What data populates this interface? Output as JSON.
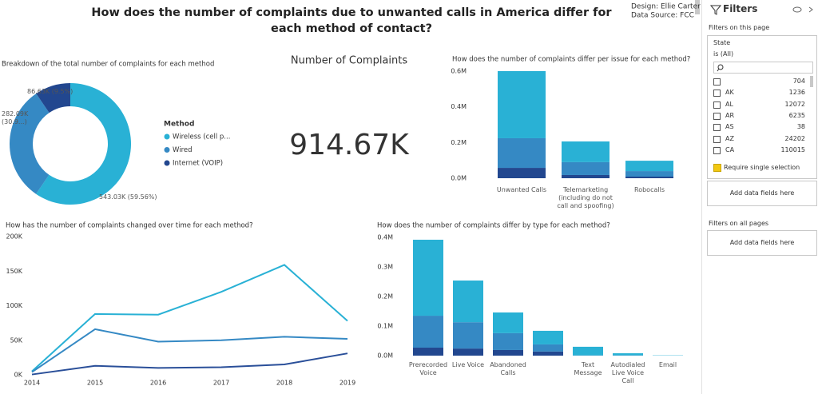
{
  "header": {
    "title": "How does the number of complaints due to unwanted calls in America differ for each method of contact?",
    "credits": [
      "Design: Ellie Carter",
      "Data Source: FCC"
    ]
  },
  "card": {
    "title": "Number of Complaints",
    "value": "914.67K"
  },
  "chart_data": [
    {
      "type": "pie",
      "donut": true,
      "title": "Breakdown of the total number of complaints for each method",
      "legend_title": "Method",
      "categories": [
        "Wireless (cell p...",
        "Wired",
        "Internet (VOIP)"
      ],
      "values": [
        543030,
        282090,
        86630
      ],
      "value_labels": [
        "543.03K (59.56%)",
        "282.09K (30.9...)",
        "86.63K (9.5%)"
      ],
      "colors": [
        "#29b1d5",
        "#3589c4",
        "#22478f"
      ]
    },
    {
      "type": "bar",
      "stacked": true,
      "title": "How does the number of complaints differ per issue for each method?",
      "categories": [
        "Unwanted Calls",
        "Telemarketing (including do not call and spoofing)",
        "Robocalls"
      ],
      "series": [
        {
          "color": "#29b1d5",
          "values": [
            376000,
            116000,
            58000
          ]
        },
        {
          "color": "#3589c4",
          "values": [
            166000,
            72000,
            31000
          ]
        },
        {
          "color": "#22478f",
          "values": [
            58000,
            18000,
            9000
          ]
        }
      ],
      "ylim": [
        0,
        600000
      ],
      "yticks": [
        {
          "value": 0,
          "label": "0.0M"
        },
        {
          "value": 200000,
          "label": "0.2M"
        },
        {
          "value": 400000,
          "label": "0.4M"
        },
        {
          "value": 600000,
          "label": "0.6M"
        }
      ]
    },
    {
      "type": "line",
      "title": "How has the number of complaints changed over time for each method?",
      "x": [
        2014,
        2015,
        2016,
        2017,
        2018,
        2019
      ],
      "series": [
        {
          "color": "#29b1d5",
          "values": [
            5000,
            88000,
            87000,
            120000,
            159000,
            78000
          ]
        },
        {
          "color": "#3589c4",
          "values": [
            4000,
            66000,
            48000,
            50000,
            55000,
            52000
          ]
        },
        {
          "color": "#2a4f99",
          "values": [
            500,
            13000,
            10000,
            11000,
            15000,
            31000
          ]
        }
      ],
      "xlim": [
        2014,
        2019
      ],
      "xticks": [
        2014,
        2015,
        2016,
        2017,
        2018,
        2019
      ],
      "ylim": [
        0,
        200000
      ],
      "yticks": [
        {
          "value": 0,
          "label": "0K"
        },
        {
          "value": 50000,
          "label": "50K"
        },
        {
          "value": 100000,
          "label": "100K"
        },
        {
          "value": 150000,
          "label": "150K"
        },
        {
          "value": 200000,
          "label": "200K"
        }
      ]
    },
    {
      "type": "bar",
      "stacked": true,
      "title": "How does the number of complaints differ by type for each method?",
      "categories": [
        "Prerecorded Voice",
        "Live Voice",
        "Abandoned Calls",
        null,
        "Text Message",
        "Autodialed Live Voice Call",
        "Email"
      ],
      "series": [
        {
          "color": "#29b1d5",
          "values": [
            257000,
            141000,
            70000,
            46000,
            29000,
            7000,
            1000
          ]
        },
        {
          "color": "#3589c4",
          "values": [
            108000,
            89000,
            57000,
            24000,
            1000,
            1000,
            0
          ]
        },
        {
          "color": "#22478f",
          "values": [
            27000,
            24000,
            19000,
            14000,
            0,
            0,
            0
          ]
        }
      ],
      "ylim": [
        0,
        400000
      ],
      "yticks": [
        {
          "value": 0,
          "label": "0.0M"
        },
        {
          "value": 100000,
          "label": "0.1M"
        },
        {
          "value": 200000,
          "label": "0.2M"
        },
        {
          "value": 300000,
          "label": "0.3M"
        },
        {
          "value": 400000,
          "label": "0.4M"
        }
      ]
    }
  ],
  "filters": {
    "title": "Filters",
    "page_section": "Filters on this page",
    "state_card": {
      "field": "State",
      "condition": "is (All)",
      "rows": [
        {
          "count": "704"
        },
        {
          "name": "AK",
          "count": "1236"
        },
        {
          "name": "AL",
          "count": "12072"
        },
        {
          "name": "AR",
          "count": "6235"
        },
        {
          "name": "AS",
          "count": "38"
        },
        {
          "name": "AZ",
          "count": "24202"
        },
        {
          "name": "CA",
          "count": "110015"
        }
      ],
      "single_selection": "Require single selection"
    },
    "page_add": "Add data fields here",
    "all_section": "Filters on all pages",
    "all_add": "Add data fields here"
  }
}
